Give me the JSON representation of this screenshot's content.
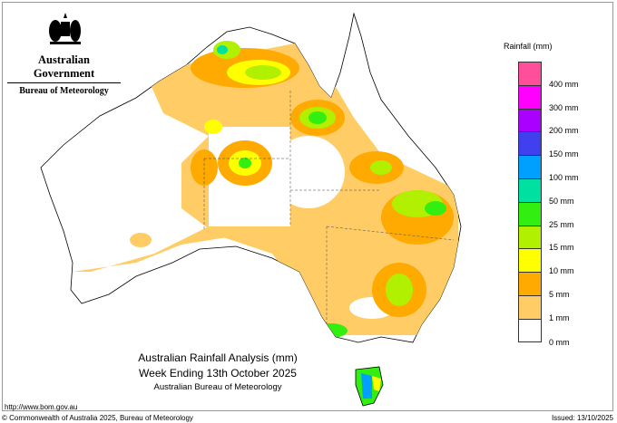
{
  "header": {
    "government": "Australian Government",
    "bureau": "Bureau of Meteorology",
    "logo": "coat-of-arms"
  },
  "title": {
    "line1": "Australian Rainfall Analysis (mm)",
    "line2": "Week Ending 13th October 2025",
    "line3": "Australian Bureau of Meteorology"
  },
  "legend": {
    "title": "Rainfall (mm)",
    "bins": [
      {
        "color": "#ff4f9b"
      },
      {
        "color": "#ff00ff",
        "label": "400 mm"
      },
      {
        "color": "#aa00ff",
        "label": "300 mm"
      },
      {
        "color": "#4040ee",
        "label": "200 mm"
      },
      {
        "color": "#00a0ff",
        "label": "150 mm"
      },
      {
        "color": "#00e0a0",
        "label": "100 mm"
      },
      {
        "color": "#33ee11",
        "label": "50 mm"
      },
      {
        "color": "#b0f000",
        "label": "25 mm"
      },
      {
        "color": "#ffff00",
        "label": "15 mm"
      },
      {
        "color": "#ffaa00",
        "label": "10 mm"
      },
      {
        "color": "#ffcc66",
        "label": "5 mm"
      },
      {
        "color": "#ffffff",
        "label": "1 mm"
      }
    ],
    "bottom_label": "0 mm"
  },
  "footer": {
    "url": "http://www.bom.gov.au",
    "copyright": "© Commonwealth of Australia 2025, Bureau of Meteorology",
    "issued": "Issued: 13/10/2025"
  }
}
